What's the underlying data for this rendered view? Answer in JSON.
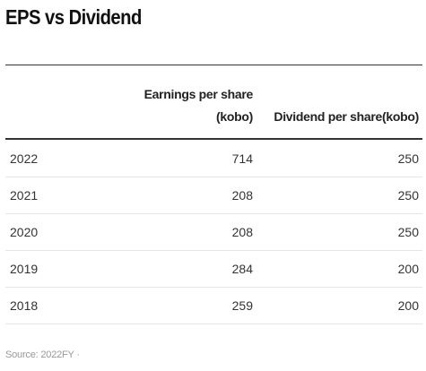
{
  "title": "EPS vs Dividend",
  "chart_data": {
    "type": "table",
    "title": "EPS vs Dividend",
    "columns": [
      "",
      "Earnings per share (kobo)",
      "Dividend per share(kobo)"
    ],
    "rows": [
      {
        "year": "2022",
        "eps": "714",
        "dividend": "250"
      },
      {
        "year": "2021",
        "eps": "208",
        "dividend": "250"
      },
      {
        "year": "2020",
        "eps": "208",
        "dividend": "250"
      },
      {
        "year": "2019",
        "eps": "284",
        "dividend": "200"
      },
      {
        "year": "2018",
        "eps": "259",
        "dividend": "200"
      }
    ]
  },
  "header": {
    "eps_line1": "Earnings per share",
    "eps_line2": "(kobo)",
    "dividend": "Dividend per share(kobo)"
  },
  "source": "Source: 2022FY ·"
}
